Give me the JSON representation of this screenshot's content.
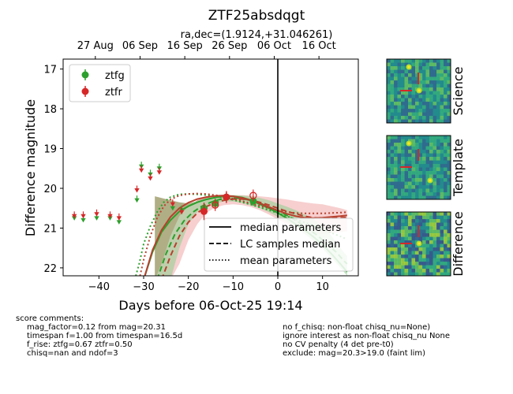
{
  "chart_data": {
    "type": "scatter",
    "title": "ZTF25absdqgt",
    "subtitle": "ra,dec=(1.9124,+31.046261)",
    "xlabel": "Days before 06-Oct-25 19:14",
    "ylabel": "Difference magnitude",
    "xlim": [
      -48,
      18
    ],
    "ylim": [
      22.2,
      16.75
    ],
    "y_inverted": true,
    "xticks": [
      -40,
      -30,
      -20,
      -10,
      0,
      10
    ],
    "xtick_labels": [
      "−40",
      "−30",
      "−20",
      "−10",
      "0",
      "10"
    ],
    "yticks": [
      17,
      18,
      19,
      20,
      21,
      22
    ],
    "ytick_labels": [
      "17",
      "18",
      "19",
      "20",
      "21",
      "22"
    ],
    "top_axis_ticks": [
      {
        "x": -40.8,
        "label": "27 Aug"
      },
      {
        "x": -30.8,
        "label": "06 Sep"
      },
      {
        "x": -20.8,
        "label": "16 Sep"
      },
      {
        "x": -10.8,
        "label": "26 Sep"
      },
      {
        "x": -0.8,
        "label": "06 Oct"
      },
      {
        "x": 9.2,
        "label": "16 Oct"
      }
    ],
    "reference_line_x": 0,
    "legend_bands": {
      "entries": [
        "ztfg",
        "ztfr"
      ],
      "location": "upper-left"
    },
    "legend_lines": {
      "entries": [
        "median parameters",
        "LC samples median",
        "mean parameters"
      ],
      "location": "lower-right"
    },
    "series": [
      {
        "name": "ztfg",
        "color": "#2ca02c",
        "upper_limits": [
          [
            -45.5,
            20.75
          ],
          [
            -43.5,
            20.8
          ],
          [
            -40.5,
            20.75
          ],
          [
            -37.5,
            20.75
          ],
          [
            -35.5,
            20.85
          ],
          [
            -31.5,
            20.3
          ],
          [
            -30.5,
            19.45
          ],
          [
            -28.5,
            19.65
          ],
          [
            -26.5,
            19.5
          ],
          [
            -23.5,
            20.5
          ],
          [
            -21.5,
            20.55
          ]
        ],
        "detections": [
          {
            "x": -16.5,
            "y": 20.5,
            "err": 0.12
          },
          {
            "x": -14.0,
            "y": 20.38,
            "err": 0.12
          },
          {
            "x": -11.5,
            "y": 20.22,
            "err": 0.12
          },
          {
            "x": -5.5,
            "y": 20.32,
            "err": 0.12
          }
        ]
      },
      {
        "name": "ztfr",
        "color": "#d62728",
        "upper_limits": [
          [
            -45.5,
            20.7
          ],
          [
            -43.5,
            20.7
          ],
          [
            -40.5,
            20.65
          ],
          [
            -37.5,
            20.7
          ],
          [
            -35.5,
            20.75
          ],
          [
            -31.5,
            20.05
          ],
          [
            -30.5,
            19.55
          ],
          [
            -28.5,
            19.75
          ],
          [
            -26.5,
            19.6
          ],
          [
            -23.5,
            20.4
          ],
          [
            -21.5,
            20.6
          ]
        ],
        "detections": [
          {
            "x": -16.5,
            "y": 20.58,
            "err": 0.22
          },
          {
            "x": -11.5,
            "y": 20.22,
            "err": 0.15
          }
        ],
        "open_points": [
          {
            "x": -14.0,
            "y": 20.42,
            "err": 0.15
          },
          {
            "x": -5.5,
            "y": 20.18,
            "err": 0.15
          }
        ]
      }
    ],
    "model_curves": {
      "g_median": [
        [
          -30,
          22.3
        ],
        [
          -28,
          21.6
        ],
        [
          -26,
          21.1
        ],
        [
          -24,
          20.8
        ],
        [
          -22,
          20.58
        ],
        [
          -20,
          20.45
        ],
        [
          -18,
          20.35
        ],
        [
          -16,
          20.28
        ],
        [
          -14,
          20.23
        ],
        [
          -12,
          20.2
        ],
        [
          -10,
          20.2
        ],
        [
          -8,
          20.23
        ],
        [
          -6,
          20.3
        ],
        [
          -4,
          20.4
        ],
        [
          -2,
          20.5
        ],
        [
          0,
          20.62
        ],
        [
          2,
          20.75
        ],
        [
          4,
          20.9
        ],
        [
          6,
          21.05
        ],
        [
          8,
          21.22
        ],
        [
          10,
          21.42
        ],
        [
          12,
          21.65
        ],
        [
          14,
          21.9
        ],
        [
          15.5,
          22.1
        ]
      ],
      "g_samples_median": [
        [
          -27,
          22.3
        ],
        [
          -25,
          21.65
        ],
        [
          -23,
          21.15
        ],
        [
          -21,
          20.82
        ],
        [
          -19,
          20.6
        ],
        [
          -17,
          20.45
        ],
        [
          -15,
          20.35
        ],
        [
          -13,
          20.28
        ],
        [
          -11,
          20.25
        ],
        [
          -9,
          20.25
        ],
        [
          -7,
          20.28
        ],
        [
          -5,
          20.33
        ],
        [
          -3,
          20.42
        ],
        [
          -1,
          20.52
        ],
        [
          1,
          20.62
        ],
        [
          3,
          20.74
        ],
        [
          5,
          20.88
        ],
        [
          7,
          21.03
        ],
        [
          9,
          21.2
        ],
        [
          11,
          21.4
        ],
        [
          13,
          21.6
        ],
        [
          15,
          21.85
        ],
        [
          15.5,
          21.9
        ]
      ],
      "g_mean": [
        [
          -32,
          22.3
        ],
        [
          -31,
          21.9
        ],
        [
          -30,
          21.4
        ],
        [
          -28.5,
          20.95
        ],
        [
          -27,
          20.6
        ],
        [
          -25.5,
          20.35
        ],
        [
          -24,
          20.22
        ],
        [
          -22,
          20.15
        ],
        [
          -20,
          20.14
        ],
        [
          -18,
          20.15
        ],
        [
          -16,
          20.17
        ],
        [
          -14,
          20.2
        ],
        [
          -12,
          20.24
        ],
        [
          -10,
          20.29
        ],
        [
          -8,
          20.35
        ],
        [
          -6,
          20.41
        ],
        [
          -4,
          20.48
        ],
        [
          -2,
          20.55
        ],
        [
          0,
          20.62
        ],
        [
          2,
          20.7
        ],
        [
          4,
          20.78
        ],
        [
          6,
          20.86
        ],
        [
          8,
          20.94
        ],
        [
          10,
          21.03
        ],
        [
          12,
          21.12
        ],
        [
          14,
          21.21
        ],
        [
          15.5,
          21.28
        ]
      ],
      "r_median": [
        [
          -30,
          22.3
        ],
        [
          -28,
          21.55
        ],
        [
          -26,
          21.05
        ],
        [
          -24,
          20.72
        ],
        [
          -22,
          20.5
        ],
        [
          -20,
          20.36
        ],
        [
          -18,
          20.27
        ],
        [
          -16,
          20.22
        ],
        [
          -14,
          20.19
        ],
        [
          -12,
          20.18
        ],
        [
          -10,
          20.2
        ],
        [
          -8,
          20.24
        ],
        [
          -6,
          20.3
        ],
        [
          -4,
          20.38
        ],
        [
          -2,
          20.47
        ],
        [
          0,
          20.56
        ],
        [
          2,
          20.64
        ],
        [
          4,
          20.7
        ],
        [
          6,
          20.74
        ],
        [
          8,
          20.75
        ],
        [
          10,
          20.74
        ],
        [
          12,
          20.72
        ],
        [
          14,
          20.7
        ],
        [
          15.5,
          20.68
        ]
      ],
      "r_samples_median": [
        [
          -26,
          22.3
        ],
        [
          -24,
          21.7
        ],
        [
          -22,
          21.2
        ],
        [
          -20,
          20.85
        ],
        [
          -18,
          20.62
        ],
        [
          -16,
          20.46
        ],
        [
          -14,
          20.36
        ],
        [
          -12,
          20.3
        ],
        [
          -10,
          20.27
        ],
        [
          -8,
          20.27
        ],
        [
          -6,
          20.3
        ],
        [
          -4,
          20.35
        ],
        [
          -2,
          20.42
        ],
        [
          0,
          20.5
        ],
        [
          2,
          20.58
        ],
        [
          4,
          20.64
        ],
        [
          6,
          20.7
        ],
        [
          8,
          20.74
        ],
        [
          10,
          20.75
        ],
        [
          12,
          20.75
        ],
        [
          14,
          20.74
        ],
        [
          15.5,
          20.73
        ]
      ],
      "r_mean": [
        [
          -31,
          22.3
        ],
        [
          -30,
          21.8
        ],
        [
          -28.5,
          21.2
        ],
        [
          -27,
          20.75
        ],
        [
          -25.5,
          20.45
        ],
        [
          -24,
          20.28
        ],
        [
          -22,
          20.18
        ],
        [
          -20,
          20.14
        ],
        [
          -18,
          20.13
        ],
        [
          -16,
          20.14
        ],
        [
          -14,
          20.17
        ],
        [
          -12,
          20.21
        ],
        [
          -10,
          20.26
        ],
        [
          -8,
          20.32
        ],
        [
          -6,
          20.38
        ],
        [
          -4,
          20.44
        ],
        [
          -2,
          20.5
        ],
        [
          0,
          20.55
        ],
        [
          2,
          20.59
        ],
        [
          4,
          20.62
        ],
        [
          6,
          20.63
        ],
        [
          8,
          20.63
        ],
        [
          10,
          20.63
        ],
        [
          12,
          20.62
        ],
        [
          14,
          20.61
        ],
        [
          15.5,
          20.6
        ]
      ],
      "g_band": {
        "upper": [
          [
            -27.5,
            20.2
          ],
          [
            -24,
            20.3
          ],
          [
            -22,
            20.35
          ],
          [
            -20,
            20.38
          ],
          [
            -18,
            20.32
          ],
          [
            -16,
            20.25
          ],
          [
            -14,
            20.2
          ],
          [
            -12,
            20.17
          ],
          [
            -10,
            20.17
          ],
          [
            -8,
            20.18
          ],
          [
            -6,
            20.2
          ],
          [
            -4,
            20.24
          ],
          [
            -2,
            20.3
          ],
          [
            0,
            20.38
          ],
          [
            2,
            20.46
          ],
          [
            4,
            20.55
          ],
          [
            6,
            20.66
          ],
          [
            8,
            20.78
          ],
          [
            10,
            20.95
          ],
          [
            12,
            21.2
          ],
          [
            14,
            21.5
          ],
          [
            15.5,
            21.7
          ]
        ],
        "lower": [
          [
            -27.5,
            22.3
          ],
          [
            -24,
            22.3
          ],
          [
            -22,
            21.5
          ],
          [
            -20,
            20.9
          ],
          [
            -18,
            20.6
          ],
          [
            -16,
            20.45
          ],
          [
            -14,
            20.37
          ],
          [
            -12,
            20.33
          ],
          [
            -10,
            20.33
          ],
          [
            -8,
            20.36
          ],
          [
            -6,
            20.42
          ],
          [
            -4,
            20.5
          ],
          [
            -2,
            20.6
          ],
          [
            0,
            20.72
          ],
          [
            2,
            20.85
          ],
          [
            4,
            21.0
          ],
          [
            6,
            21.15
          ],
          [
            8,
            21.32
          ],
          [
            10,
            21.52
          ],
          [
            12,
            21.75
          ],
          [
            14,
            22.0
          ],
          [
            15.5,
            22.2
          ]
        ]
      },
      "r_band": {
        "upper": [
          [
            -27.5,
            22.3
          ],
          [
            -26,
            21.9
          ],
          [
            -24,
            21.2
          ],
          [
            -22,
            20.7
          ],
          [
            -20,
            20.45
          ],
          [
            -18,
            20.3
          ],
          [
            -16,
            20.22
          ],
          [
            -14,
            20.18
          ],
          [
            -12,
            20.17
          ],
          [
            -10,
            20.17
          ],
          [
            -8,
            20.17
          ],
          [
            -6,
            20.18
          ],
          [
            -4,
            20.2
          ],
          [
            -2,
            20.22
          ],
          [
            0,
            20.25
          ],
          [
            2,
            20.28
          ],
          [
            4,
            20.32
          ],
          [
            6,
            20.35
          ],
          [
            8,
            20.38
          ],
          [
            10,
            20.4
          ],
          [
            12,
            20.45
          ],
          [
            14,
            20.5
          ],
          [
            15.5,
            20.55
          ]
        ],
        "lower": [
          [
            -27.5,
            22.3
          ],
          [
            -24,
            22.3
          ],
          [
            -22,
            21.9
          ],
          [
            -20,
            21.3
          ],
          [
            -18,
            20.9
          ],
          [
            -16,
            20.62
          ],
          [
            -14,
            20.48
          ],
          [
            -12,
            20.42
          ],
          [
            -10,
            20.4
          ],
          [
            -8,
            20.42
          ],
          [
            -6,
            20.47
          ],
          [
            -4,
            20.55
          ],
          [
            -2,
            20.66
          ],
          [
            0,
            20.78
          ],
          [
            2,
            20.9
          ],
          [
            4,
            21.02
          ],
          [
            6,
            21.1
          ],
          [
            8,
            21.15
          ],
          [
            10,
            21.15
          ],
          [
            12,
            21.12
          ],
          [
            14,
            21.1
          ],
          [
            15.5,
            21.08
          ]
        ]
      }
    }
  },
  "cutouts": [
    {
      "label": "Science",
      "image": "science-cutout"
    },
    {
      "label": "Template",
      "image": "template-cutout"
    },
    {
      "label": "Difference",
      "image": "difference-cutout"
    }
  ],
  "score_comments": {
    "header": "score comments:",
    "left": [
      "mag_factor=0.12 from mag=20.31",
      "timespan f=1.00 from timespan=16.5d",
      "f_rise: ztfg=0.67 ztfr=0.50",
      "chisq=nan and ndof=3"
    ],
    "right": [
      "no f_chisq: non-float chisq_nu=None)",
      "ignore interest as non-float chisq_nu None",
      "no CV penalty (4 det pre-t0)",
      "exclude: mag=20.3>19.0 (faint lim)"
    ]
  },
  "colors": {
    "g": "#2ca02c",
    "r": "#d62728",
    "g_band": "#8fd08f",
    "r_band": "#f0a8a8",
    "overlap": "#9c6b3c",
    "model_line": "#b8402e"
  }
}
